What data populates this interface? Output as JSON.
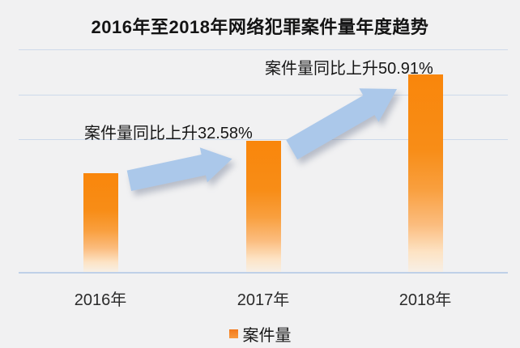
{
  "chart_data": {
    "type": "bar",
    "title": "2016年至2018年网络犯罪案件量年度趋势",
    "categories": [
      "2016年",
      "2017年",
      "2018年"
    ],
    "series": [
      {
        "name": "案件量",
        "values_relative": [
          1.0,
          1.3258,
          2.0009
        ]
      }
    ],
    "yoy_growth_pct": [
      null,
      32.58,
      50.91
    ],
    "annotations": [
      "案件量同比上升32.58%",
      "案件量同比上升50.91%"
    ],
    "xlabel": "",
    "ylabel": "",
    "value_axis_labels_visible": false,
    "grid": true,
    "legend_position": "bottom"
  },
  "legend": {
    "label": "案件量"
  },
  "colors": {
    "background": "#F1F1F2",
    "gridline": "#CDD9EA",
    "axis_line": "#BFD0E8",
    "bar_orange_top": "#F9860B",
    "bar_fade_bottom": "#F7EFE6",
    "arrow_blue": "#ABC8EA",
    "text": "#161616"
  }
}
